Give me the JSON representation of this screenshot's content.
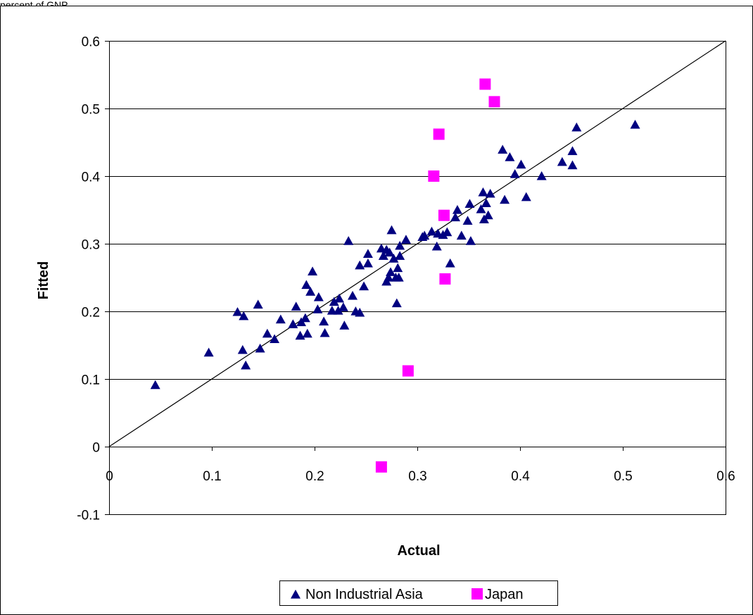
{
  "caption": "percent of GNP",
  "chart_data": {
    "type": "scatter",
    "xlabel": "Actual",
    "ylabel": "Fitted",
    "xlim": [
      0,
      0.6
    ],
    "ylim": [
      -0.1,
      0.6
    ],
    "x_ticks": [
      "0",
      "0.1",
      "0.2",
      "0.3",
      "0.4",
      "0.5",
      "0.6"
    ],
    "y_ticks": [
      "-0.1",
      "0",
      "0.1",
      "0.2",
      "0.3",
      "0.4",
      "0.5",
      "0.6"
    ],
    "grid": "horizontal",
    "legend_position": "bottom",
    "reference_line": {
      "from": [
        0,
        0
      ],
      "to": [
        0.6,
        0.6
      ]
    },
    "series": [
      {
        "name": "Non Industrial Asia",
        "marker": "triangle",
        "color": "#000080",
        "points": [
          [
            0.045,
            0.091
          ],
          [
            0.097,
            0.139
          ],
          [
            0.125,
            0.199
          ],
          [
            0.13,
            0.143
          ],
          [
            0.131,
            0.193
          ],
          [
            0.133,
            0.12
          ],
          [
            0.145,
            0.21
          ],
          [
            0.147,
            0.145
          ],
          [
            0.154,
            0.167
          ],
          [
            0.161,
            0.159
          ],
          [
            0.167,
            0.188
          ],
          [
            0.179,
            0.181
          ],
          [
            0.182,
            0.207
          ],
          [
            0.186,
            0.164
          ],
          [
            0.187,
            0.184
          ],
          [
            0.191,
            0.19
          ],
          [
            0.192,
            0.239
          ],
          [
            0.193,
            0.167
          ],
          [
            0.196,
            0.229
          ],
          [
            0.198,
            0.259
          ],
          [
            0.203,
            0.203
          ],
          [
            0.204,
            0.221
          ],
          [
            0.209,
            0.185
          ],
          [
            0.21,
            0.168
          ],
          [
            0.217,
            0.201
          ],
          [
            0.219,
            0.214
          ],
          [
            0.223,
            0.201
          ],
          [
            0.224,
            0.219
          ],
          [
            0.228,
            0.206
          ],
          [
            0.229,
            0.179
          ],
          [
            0.233,
            0.304
          ],
          [
            0.237,
            0.223
          ],
          [
            0.24,
            0.2
          ],
          [
            0.244,
            0.198
          ],
          [
            0.244,
            0.268
          ],
          [
            0.248,
            0.237
          ],
          [
            0.252,
            0.285
          ],
          [
            0.252,
            0.271
          ],
          [
            0.265,
            0.293
          ],
          [
            0.267,
            0.282
          ],
          [
            0.27,
            0.291
          ],
          [
            0.27,
            0.244
          ],
          [
            0.272,
            0.25
          ],
          [
            0.273,
            0.287
          ],
          [
            0.274,
            0.258
          ],
          [
            0.275,
            0.32
          ],
          [
            0.277,
            0.278
          ],
          [
            0.279,
            0.25
          ],
          [
            0.28,
            0.212
          ],
          [
            0.281,
            0.264
          ],
          [
            0.283,
            0.297
          ],
          [
            0.283,
            0.282
          ],
          [
            0.282,
            0.25
          ],
          [
            0.289,
            0.306
          ],
          [
            0.305,
            0.31
          ],
          [
            0.307,
            0.312
          ],
          [
            0.314,
            0.318
          ],
          [
            0.319,
            0.296
          ],
          [
            0.32,
            0.315
          ],
          [
            0.325,
            0.313
          ],
          [
            0.329,
            0.317
          ],
          [
            0.332,
            0.271
          ],
          [
            0.337,
            0.339
          ],
          [
            0.339,
            0.35
          ],
          [
            0.343,
            0.312
          ],
          [
            0.349,
            0.334
          ],
          [
            0.351,
            0.359
          ],
          [
            0.352,
            0.304
          ],
          [
            0.362,
            0.351
          ],
          [
            0.364,
            0.376
          ],
          [
            0.365,
            0.336
          ],
          [
            0.367,
            0.36
          ],
          [
            0.369,
            0.342
          ],
          [
            0.371,
            0.374
          ],
          [
            0.383,
            0.439
          ],
          [
            0.385,
            0.365
          ],
          [
            0.39,
            0.428
          ],
          [
            0.395,
            0.403
          ],
          [
            0.401,
            0.417
          ],
          [
            0.406,
            0.369
          ],
          [
            0.421,
            0.4
          ],
          [
            0.441,
            0.421
          ],
          [
            0.451,
            0.437
          ],
          [
            0.451,
            0.416
          ],
          [
            0.455,
            0.472
          ],
          [
            0.512,
            0.476
          ]
        ]
      },
      {
        "name": "Japan",
        "marker": "square",
        "color": "#FF00FF",
        "points": [
          [
            0.265,
            -0.03
          ],
          [
            0.291,
            0.112
          ],
          [
            0.316,
            0.4
          ],
          [
            0.321,
            0.462
          ],
          [
            0.326,
            0.342
          ],
          [
            0.327,
            0.248
          ],
          [
            0.366,
            0.536
          ],
          [
            0.375,
            0.51
          ]
        ]
      }
    ]
  }
}
